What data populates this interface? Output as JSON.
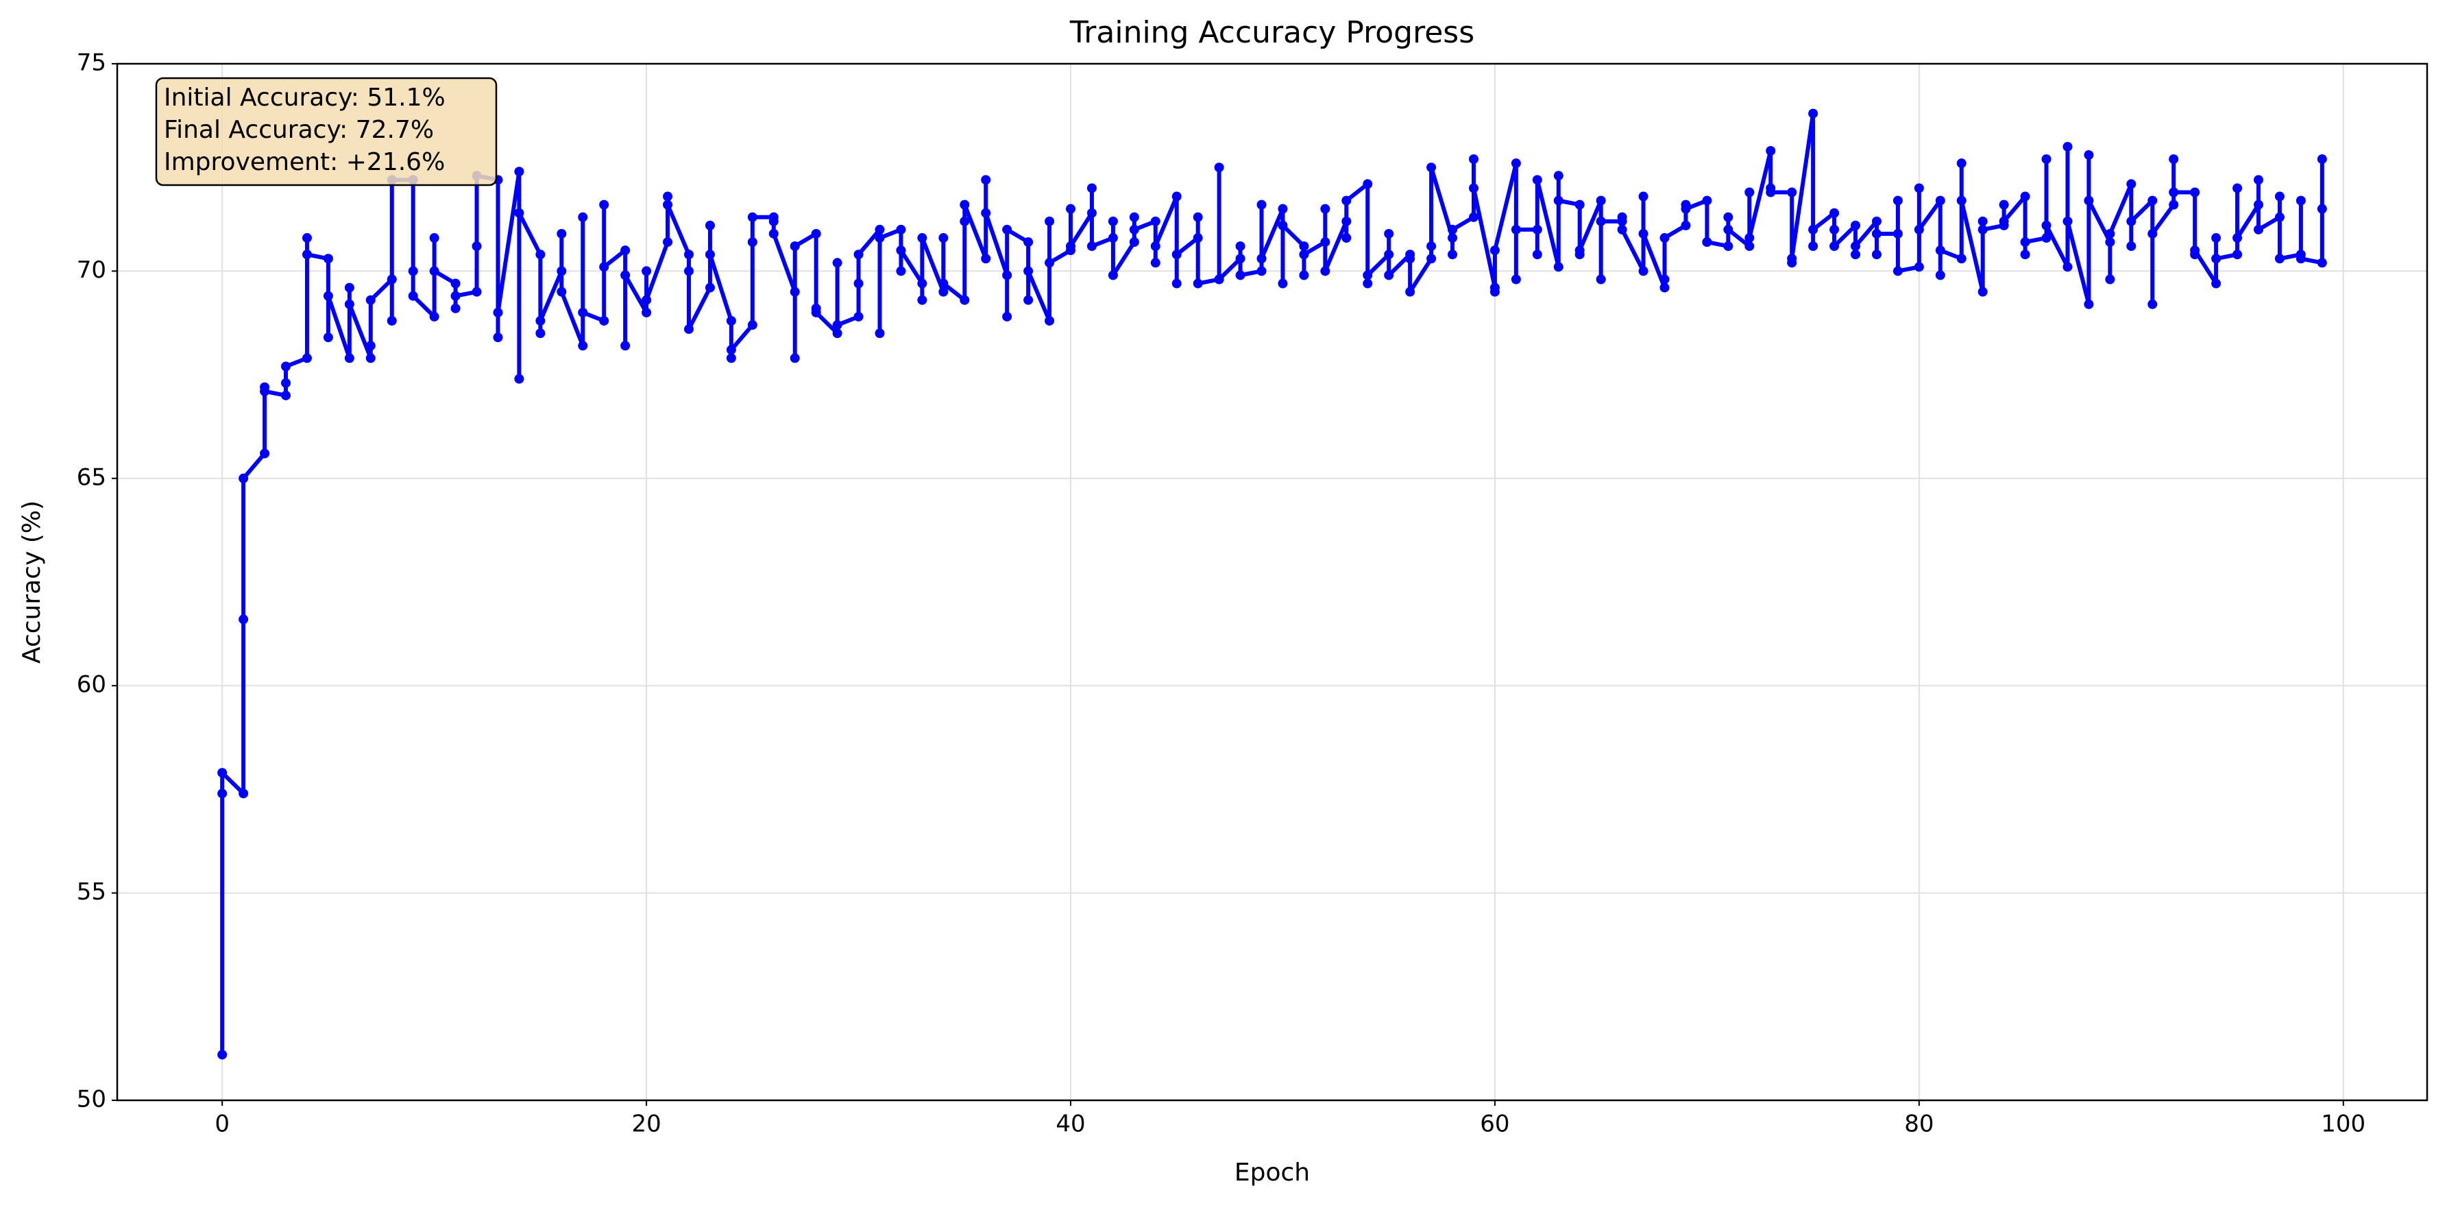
{
  "chart_data": {
    "type": "line",
    "title": "Training Accuracy Progress",
    "xlabel": "Epoch",
    "ylabel": "Accuracy (%)",
    "x": [
      0,
      0,
      0,
      1,
      1,
      1,
      2,
      2,
      2,
      3,
      3,
      3,
      4,
      4,
      4,
      5,
      5,
      5,
      6,
      6,
      6,
      7,
      7,
      7,
      8,
      8,
      8,
      9,
      9,
      9,
      10,
      10,
      10,
      11,
      11,
      11,
      12,
      12,
      12,
      13,
      13,
      13,
      14,
      14,
      14,
      15,
      15,
      15,
      16,
      16,
      16,
      17,
      17,
      17,
      18,
      18,
      18,
      19,
      19,
      19,
      20,
      20,
      20,
      21,
      21,
      21,
      22,
      22,
      22,
      23,
      23,
      23,
      24,
      24,
      24,
      25,
      25,
      25,
      26,
      26,
      26,
      27,
      27,
      27,
      28,
      28,
      28,
      29,
      29,
      29,
      30,
      30,
      30,
      31,
      31,
      31,
      32,
      32,
      32,
      33,
      33,
      33,
      34,
      34,
      34,
      35,
      35,
      35,
      36,
      36,
      36,
      37,
      37,
      37,
      38,
      38,
      38,
      39,
      39,
      39,
      40,
      40,
      40,
      41,
      41,
      41,
      42,
      42,
      42,
      43,
      43,
      43,
      44,
      44,
      44,
      45,
      45,
      45,
      46,
      46,
      46,
      47,
      47,
      47,
      48,
      48,
      48,
      49,
      49,
      49,
      50,
      50,
      50,
      51,
      51,
      51,
      52,
      52,
      52,
      53,
      53,
      53,
      54,
      54,
      54,
      55,
      55,
      55,
      56,
      56,
      56,
      57,
      57,
      57,
      58,
      58,
      58,
      59,
      59,
      59,
      60,
      60,
      60,
      61,
      61,
      61,
      62,
      62,
      62,
      63,
      63,
      63,
      64,
      64,
      64,
      65,
      65,
      65,
      66,
      66,
      66,
      67,
      67,
      67,
      68,
      68,
      68,
      69,
      69,
      69,
      70,
      70,
      70,
      71,
      71,
      71,
      72,
      72,
      72,
      73,
      73,
      73,
      74,
      74,
      74,
      75,
      75,
      75,
      76,
      76,
      76,
      77,
      77,
      77,
      78,
      78,
      78,
      79,
      79,
      79,
      80,
      80,
      80,
      81,
      81,
      81,
      82,
      82,
      82,
      83,
      83,
      83,
      84,
      84,
      84,
      85,
      85,
      85,
      86,
      86,
      86,
      87,
      87,
      87,
      88,
      88,
      88,
      89,
      89,
      89,
      90,
      90,
      90,
      91,
      91,
      91,
      92,
      92,
      92,
      93,
      93,
      93,
      94,
      94,
      94,
      95,
      95,
      95,
      96,
      96,
      96,
      97,
      97,
      97,
      98,
      98,
      98,
      99,
      99,
      99
    ],
    "series": [
      {
        "color": "#0000ff",
        "values": [
          51.1,
          57.4,
          57.9,
          57.4,
          61.6,
          65.0,
          65.6,
          67.2,
          67.1,
          67.0,
          67.3,
          67.7,
          67.9,
          70.8,
          70.4,
          70.3,
          68.4,
          69.4,
          67.9,
          69.6,
          69.2,
          67.9,
          68.2,
          69.3,
          69.8,
          68.8,
          72.2,
          72.2,
          70.0,
          69.4,
          68.9,
          70.8,
          70.0,
          69.7,
          69.1,
          69.4,
          69.5,
          70.6,
          72.3,
          72.2,
          68.4,
          69.0,
          72.4,
          67.4,
          71.4,
          70.4,
          68.5,
          68.8,
          70.0,
          70.9,
          69.5,
          68.2,
          71.3,
          69.0,
          68.8,
          71.6,
          70.1,
          70.5,
          68.2,
          69.9,
          69.0,
          70.0,
          69.3,
          70.7,
          71.8,
          71.6,
          70.4,
          70.0,
          68.6,
          69.6,
          71.1,
          70.4,
          68.8,
          67.9,
          68.1,
          68.7,
          70.7,
          71.3,
          71.3,
          71.2,
          70.9,
          69.5,
          67.9,
          70.6,
          70.9,
          69.1,
          69.0,
          68.5,
          70.2,
          68.7,
          68.9,
          69.7,
          70.4,
          71.0,
          68.5,
          70.8,
          71.0,
          70.0,
          70.5,
          69.7,
          69.3,
          70.8,
          69.5,
          70.8,
          69.7,
          69.3,
          71.2,
          71.6,
          70.3,
          72.2,
          71.4,
          69.9,
          68.9,
          71.0,
          70.7,
          69.3,
          70.0,
          68.8,
          71.2,
          70.2,
          70.5,
          71.5,
          70.6,
          71.4,
          72.0,
          70.6,
          70.8,
          71.2,
          69.9,
          70.7,
          71.3,
          71.0,
          71.2,
          70.2,
          70.6,
          71.8,
          69.7,
          70.4,
          70.8,
          71.3,
          69.7,
          69.8,
          72.5,
          69.8,
          70.3,
          70.6,
          69.9,
          70.0,
          71.6,
          70.3,
          71.5,
          69.7,
          71.1,
          70.6,
          69.9,
          70.4,
          70.7,
          71.5,
          70.0,
          71.2,
          70.8,
          71.7,
          72.1,
          69.7,
          69.9,
          70.4,
          70.9,
          69.9,
          70.4,
          70.3,
          69.5,
          70.3,
          70.6,
          72.5,
          70.8,
          70.4,
          71.0,
          71.3,
          72.7,
          72.0,
          69.6,
          69.5,
          70.5,
          72.6,
          69.8,
          71.0,
          71.0,
          70.4,
          72.2,
          70.1,
          72.3,
          71.7,
          71.6,
          70.4,
          70.5,
          71.7,
          69.8,
          71.2,
          71.2,
          71.3,
          71.0,
          70.0,
          71.8,
          70.9,
          69.6,
          69.8,
          70.8,
          71.1,
          71.6,
          71.5,
          71.7,
          70.7,
          70.7,
          70.6,
          71.3,
          71.0,
          70.6,
          71.9,
          70.8,
          72.9,
          72.0,
          71.9,
          71.9,
          70.2,
          70.3,
          73.8,
          70.6,
          71.0,
          71.4,
          71.0,
          70.6,
          71.1,
          70.4,
          70.6,
          71.2,
          70.4,
          70.9,
          70.9,
          71.7,
          70.0,
          70.1,
          72.0,
          71.0,
          71.7,
          69.9,
          70.5,
          70.3,
          72.6,
          71.7,
          69.5,
          71.2,
          71.0,
          71.1,
          71.6,
          71.2,
          71.8,
          70.4,
          70.7,
          70.8,
          72.7,
          71.1,
          70.1,
          73.0,
          71.2,
          69.2,
          72.8,
          71.7,
          70.7,
          69.8,
          70.9,
          72.1,
          70.6,
          71.2,
          71.7,
          69.2,
          70.9,
          71.6,
          72.7,
          71.9,
          71.9,
          70.4,
          70.5,
          69.7,
          70.8,
          70.3,
          70.4,
          72.0,
          70.8,
          71.6,
          72.2,
          71.0,
          71.3,
          71.8,
          70.3,
          70.4,
          71.7,
          70.3,
          70.2,
          71.5,
          72.7
        ]
      }
    ],
    "xlim": [
      -4.95,
      103.95
    ],
    "ylim": [
      50,
      75
    ],
    "xticks": [
      0,
      20,
      40,
      60,
      80,
      100
    ],
    "yticks": [
      50,
      55,
      60,
      65,
      70,
      75
    ],
    "grid": true,
    "annotations": [
      "Initial Accuracy: 51.1%",
      "Final Accuracy: 72.7%",
      "Improvement: +21.6%"
    ]
  }
}
